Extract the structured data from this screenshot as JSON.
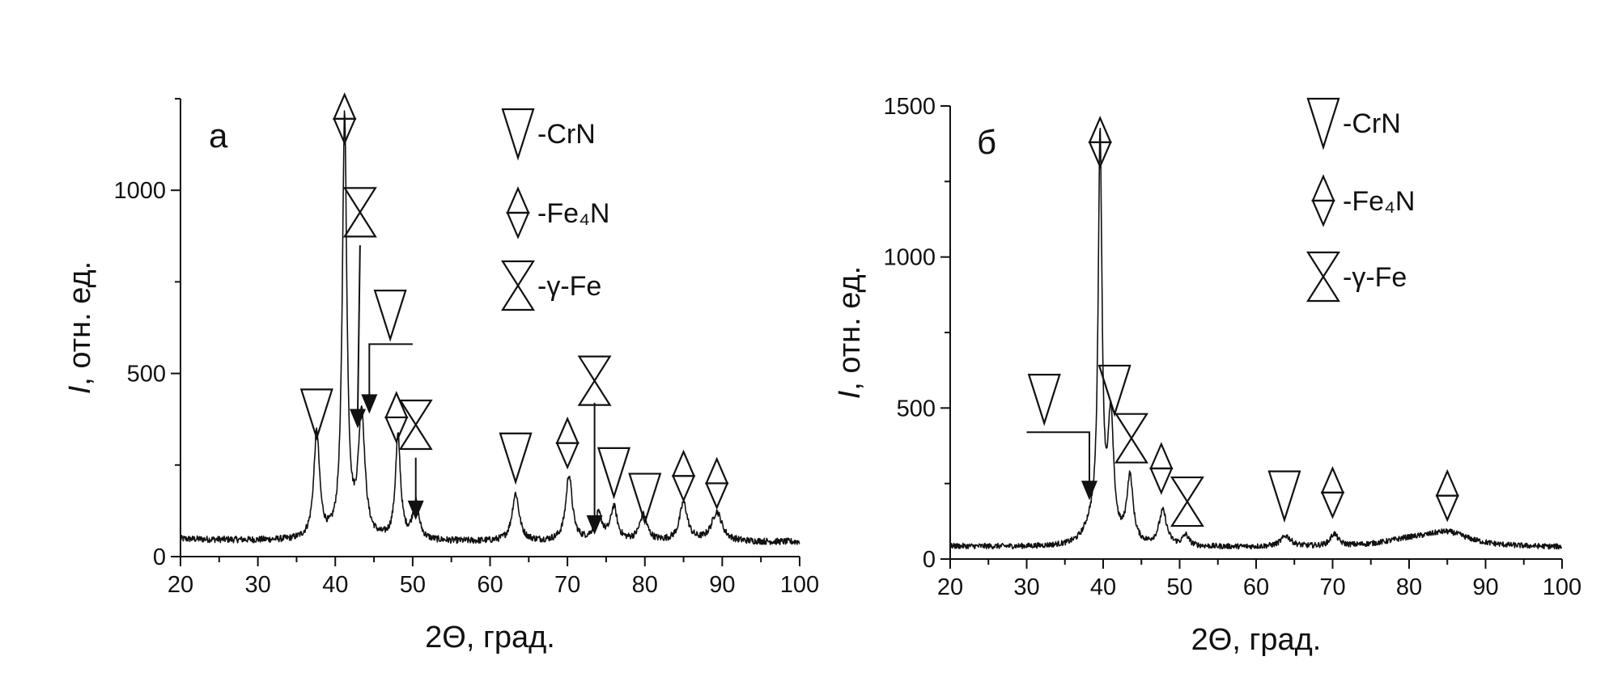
{
  "chart_data": [
    {
      "type": "line",
      "panel_label": "а",
      "xlabel": "2Θ, град.",
      "ylabel_italic": "I",
      "ylabel_rest": ", отн. ед.",
      "xlim": [
        20,
        100
      ],
      "ylim": [
        0,
        1250
      ],
      "xticks": [
        20,
        30,
        40,
        50,
        60,
        70,
        80,
        90,
        100
      ],
      "yticks": [
        0,
        500,
        1000
      ],
      "grid": false,
      "baseline": 40,
      "peaks": [
        {
          "x": 37.6,
          "height": 290,
          "width": 0.45
        },
        {
          "x": 41.2,
          "height": 1150,
          "width": 0.35
        },
        {
          "x": 43.4,
          "height": 340,
          "width": 0.5
        },
        {
          "x": 48.1,
          "height": 280,
          "width": 0.4
        },
        {
          "x": 50.4,
          "height": 100,
          "width": 0.5
        },
        {
          "x": 63.3,
          "height": 130,
          "width": 0.55
        },
        {
          "x": 70.2,
          "height": 180,
          "width": 0.5
        },
        {
          "x": 74.0,
          "height": 70,
          "width": 0.6
        },
        {
          "x": 76.0,
          "height": 90,
          "width": 0.5
        },
        {
          "x": 79.8,
          "height": 70,
          "width": 0.6
        },
        {
          "x": 85.0,
          "height": 105,
          "width": 0.6
        },
        {
          "x": 89.3,
          "height": 80,
          "width": 0.8
        }
      ],
      "markers": [
        {
          "phase": "CrN",
          "x": 37.6,
          "y": 390
        },
        {
          "phase": "Fe4N",
          "x": 41.2,
          "y": 1195
        },
        {
          "phase": "gFe",
          "x": 43.2,
          "y": 940
        },
        {
          "phase": "CrN",
          "x": 47.1,
          "y": 660
        },
        {
          "phase": "Fe4N",
          "x": 47.9,
          "y": 380
        },
        {
          "phase": "gFe",
          "x": 50.4,
          "y": 360
        },
        {
          "phase": "CrN",
          "x": 63.3,
          "y": 270
        },
        {
          "phase": "Fe4N",
          "x": 70.0,
          "y": 310
        },
        {
          "phase": "gFe",
          "x": 73.5,
          "y": 480
        },
        {
          "phase": "CrN",
          "x": 76.0,
          "y": 230
        },
        {
          "phase": "CrN",
          "x": 80.0,
          "y": 160
        },
        {
          "phase": "Fe4N",
          "x": 85.0,
          "y": 220
        },
        {
          "phase": "Fe4N",
          "x": 89.3,
          "y": 200
        }
      ],
      "arrows": [
        {
          "points": [
            [
              43.2,
              850
            ],
            [
              42.9,
              350
            ]
          ]
        },
        {
          "points": [
            [
              50.0,
              580
            ],
            [
              44.4,
              580
            ],
            [
              44.4,
              390
            ]
          ]
        },
        {
          "points": [
            [
              50.4,
              270
            ],
            [
              50.4,
              100
            ]
          ]
        },
        {
          "points": [
            [
              73.5,
              420
            ],
            [
              73.5,
              60
            ]
          ]
        }
      ],
      "legend": [
        {
          "phase": "CrN",
          "label": "-CrN"
        },
        {
          "phase": "Fe4N",
          "label": "-Fe₄N"
        },
        {
          "phase": "gFe",
          "label": "-γ-Fe"
        }
      ]
    },
    {
      "type": "line",
      "panel_label": "б",
      "xlabel": "2Θ, град.",
      "ylabel_italic": "I",
      "ylabel_rest": ", отн. ед.",
      "xlim": [
        20,
        100
      ],
      "ylim": [
        0,
        1500
      ],
      "xticks": [
        20,
        30,
        40,
        50,
        60,
        70,
        80,
        90,
        100
      ],
      "yticks": [
        0,
        500,
        1000,
        1500
      ],
      "grid": false,
      "baseline": 38,
      "peaks": [
        {
          "x": 38.5,
          "height": 60,
          "width": 1.2
        },
        {
          "x": 39.6,
          "height": 1320,
          "width": 0.3
        },
        {
          "x": 41.0,
          "height": 400,
          "width": 0.45
        },
        {
          "x": 43.5,
          "height": 220,
          "width": 0.5
        },
        {
          "x": 47.8,
          "height": 115,
          "width": 0.6
        },
        {
          "x": 50.8,
          "height": 35,
          "width": 0.5
        },
        {
          "x": 63.9,
          "height": 35,
          "width": 0.8
        },
        {
          "x": 70.2,
          "height": 40,
          "width": 0.6
        },
        {
          "x": 85.0,
          "height": 45,
          "width": 3.5
        },
        {
          "x": 80.0,
          "height": 20,
          "width": 4.0
        }
      ],
      "markers": [
        {
          "phase": "CrN",
          "x": 32.3,
          "y": 530
        },
        {
          "phase": "Fe4N",
          "x": 39.6,
          "y": 1380
        },
        {
          "phase": "CrN",
          "x": 41.5,
          "y": 560
        },
        {
          "phase": "gFe",
          "x": 43.7,
          "y": 400
        },
        {
          "phase": "Fe4N",
          "x": 47.6,
          "y": 300
        },
        {
          "phase": "gFe",
          "x": 51.0,
          "y": 190
        },
        {
          "phase": "CrN",
          "x": 63.7,
          "y": 210
        },
        {
          "phase": "Fe4N",
          "x": 70.0,
          "y": 220
        },
        {
          "phase": "Fe4N",
          "x": 85.0,
          "y": 210
        }
      ],
      "arrows": [
        {
          "points": [
            [
              30.0,
              420
            ],
            [
              38.2,
              420
            ],
            [
              38.2,
              195
            ]
          ]
        }
      ],
      "legend": [
        {
          "phase": "CrN",
          "label": "-CrN"
        },
        {
          "phase": "Fe4N",
          "label": "-Fe₄N"
        },
        {
          "phase": "gFe",
          "label": "-γ-Fe"
        }
      ]
    }
  ]
}
